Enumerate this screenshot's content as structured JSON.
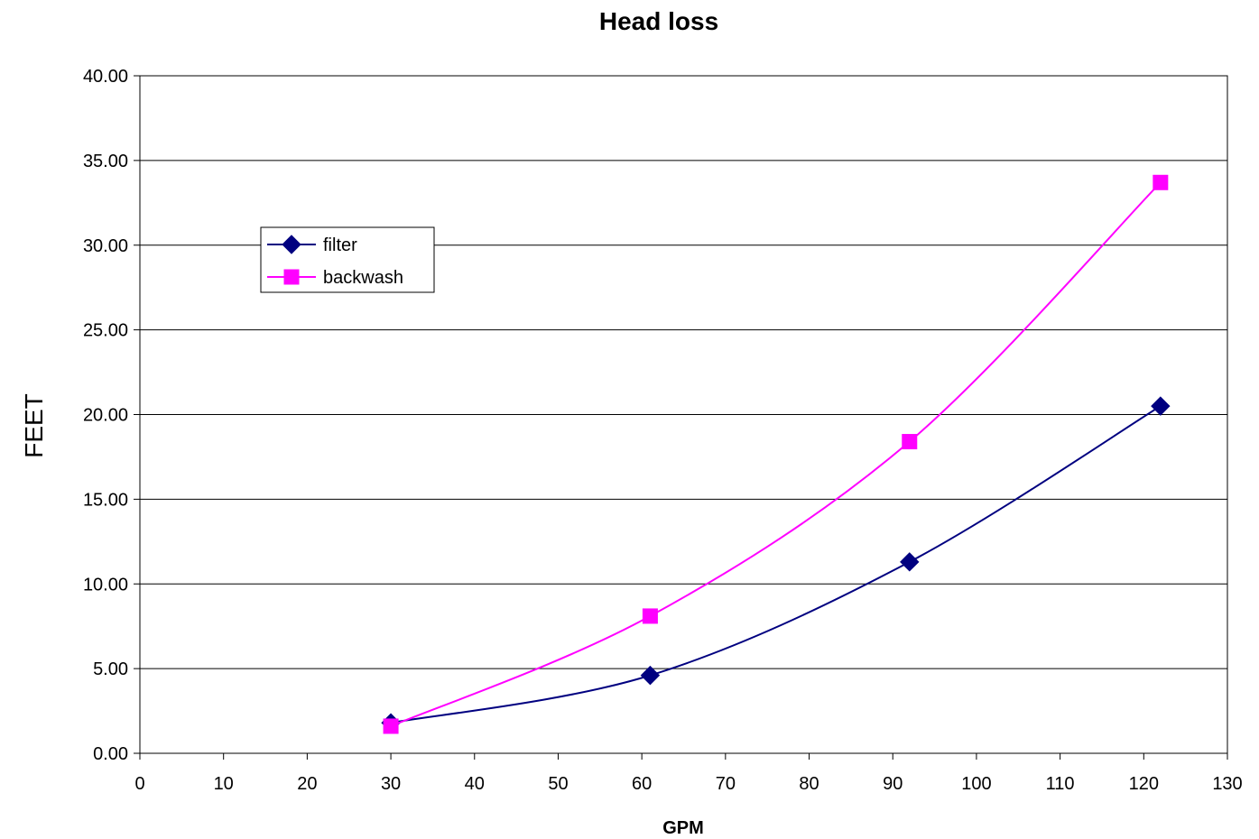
{
  "chart_data": {
    "type": "line",
    "title": "Head loss",
    "xlabel": "GPM",
    "ylabel": "FEET",
    "xlim": [
      0,
      130
    ],
    "ylim": [
      0,
      40
    ],
    "x_ticks": [
      "0",
      "10",
      "20",
      "30",
      "40",
      "50",
      "60",
      "70",
      "80",
      "90",
      "100",
      "110",
      "120",
      "130"
    ],
    "y_ticks": [
      "0.00",
      "5.00",
      "10.00",
      "15.00",
      "20.00",
      "25.00",
      "30.00",
      "35.00",
      "40.00"
    ],
    "grid": "horizontal",
    "legend_position": "upper-left",
    "x": [
      30,
      61,
      92,
      122
    ],
    "series": [
      {
        "name": "filter",
        "values": [
          1.8,
          4.6,
          11.3,
          20.5
        ],
        "color": "#000080",
        "marker": "diamond"
      },
      {
        "name": "backwash",
        "values": [
          1.6,
          8.1,
          18.4,
          33.7
        ],
        "color": "#FF00FF",
        "marker": "square"
      }
    ]
  }
}
